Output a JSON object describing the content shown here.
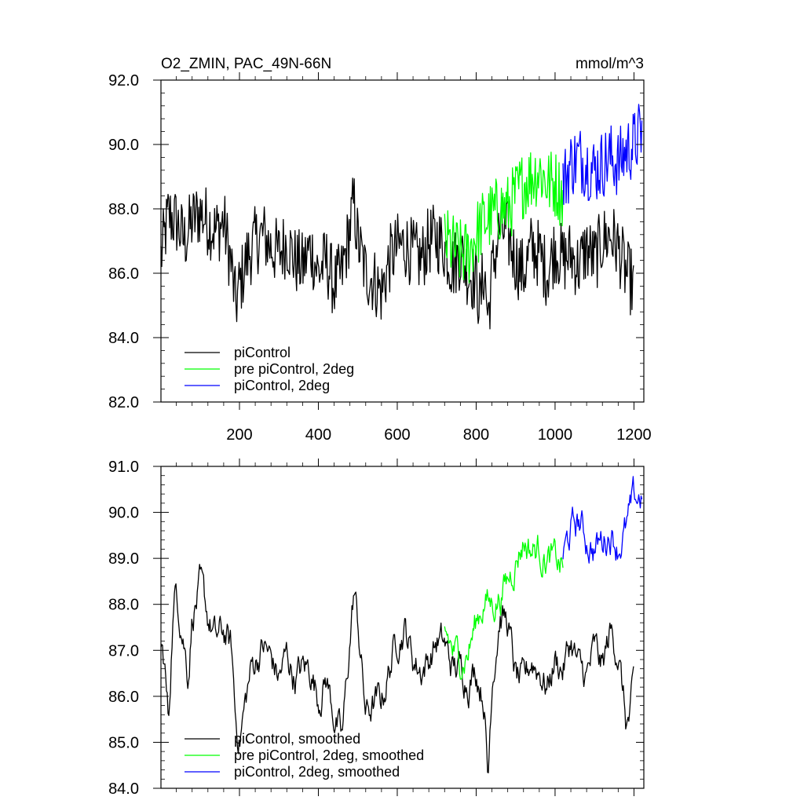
{
  "chart_data": [
    {
      "type": "line",
      "title": "O2_ZMIN, PAC_49N-66N",
      "units_label": "mmol/m^3",
      "xlim": [
        1,
        1225
      ],
      "ylim": [
        82.0,
        92.0
      ],
      "x_ticks": [
        200,
        400,
        600,
        800,
        1000,
        1200
      ],
      "x_tick_labels": [
        "200",
        "400",
        "600",
        "800",
        "1000",
        "1200"
      ],
      "y_ticks": [
        82,
        84,
        86,
        88,
        90,
        92
      ],
      "y_tick_labels": [
        "82.0",
        "84.0",
        "86.0",
        "88.0",
        "90.0",
        "92.0"
      ],
      "legend": [
        "piControl",
        "pre piControl, 2deg",
        "piControl, 2deg"
      ],
      "series": [
        {
          "name": "piControl",
          "color": "#000000",
          "x_start": 1,
          "x_end": 1200,
          "anchors": [
            [
              1,
              86.5
            ],
            [
              20,
              87.8
            ],
            [
              40,
              87.6
            ],
            [
              60,
              87.0
            ],
            [
              80,
              87.6
            ],
            [
              100,
              87.9
            ],
            [
              120,
              87.6
            ],
            [
              140,
              87.3
            ],
            [
              160,
              87.6
            ],
            [
              180,
              86.2
            ],
            [
              190,
              85.0
            ],
            [
              200,
              85.6
            ],
            [
              220,
              86.5
            ],
            [
              240,
              87.0
            ],
            [
              260,
              87.2
            ],
            [
              280,
              86.8
            ],
            [
              300,
              86.6
            ],
            [
              320,
              87.0
            ],
            [
              340,
              86.4
            ],
            [
              360,
              86.2
            ],
            [
              380,
              86.8
            ],
            [
              400,
              86.0
            ],
            [
              420,
              86.4
            ],
            [
              440,
              85.6
            ],
            [
              460,
              86.0
            ],
            [
              480,
              87.4
            ],
            [
              490,
              88.2
            ],
            [
              500,
              87.0
            ],
            [
              520,
              86.0
            ],
            [
              540,
              85.8
            ],
            [
              560,
              85.4
            ],
            [
              580,
              86.4
            ],
            [
              600,
              86.8
            ],
            [
              620,
              86.9
            ],
            [
              640,
              86.6
            ],
            [
              660,
              86.4
            ],
            [
              680,
              87.0
            ],
            [
              700,
              87.1
            ],
            [
              720,
              86.8
            ],
            [
              740,
              86.2
            ],
            [
              760,
              86.6
            ],
            [
              780,
              86.0
            ],
            [
              800,
              85.8
            ],
            [
              810,
              85.0
            ],
            [
              820,
              86.2
            ],
            [
              830,
              84.6
            ],
            [
              840,
              86.0
            ],
            [
              860,
              87.4
            ],
            [
              880,
              87.2
            ],
            [
              900,
              86.4
            ],
            [
              920,
              86.0
            ],
            [
              940,
              86.8
            ],
            [
              960,
              86.6
            ],
            [
              980,
              86.0
            ],
            [
              1000,
              86.8
            ],
            [
              1020,
              86.4
            ],
            [
              1040,
              86.6
            ],
            [
              1060,
              86.2
            ],
            [
              1080,
              86.8
            ],
            [
              1100,
              86.4
            ],
            [
              1120,
              87.0
            ],
            [
              1140,
              87.2
            ],
            [
              1160,
              86.8
            ],
            [
              1180,
              86.0
            ],
            [
              1200,
              85.6
            ]
          ]
        },
        {
          "name": "pre piControl, 2deg",
          "color": "#00ff00",
          "x_start": 720,
          "x_end": 1020,
          "anchors": [
            [
              720,
              87.0
            ],
            [
              740,
              86.8
            ],
            [
              760,
              86.6
            ],
            [
              780,
              86.6
            ],
            [
              800,
              87.2
            ],
            [
              820,
              87.6
            ],
            [
              840,
              87.8
            ],
            [
              860,
              88.0
            ],
            [
              880,
              88.0
            ],
            [
              900,
              88.4
            ],
            [
              920,
              88.8
            ],
            [
              940,
              89.0
            ],
            [
              960,
              89.2
            ],
            [
              980,
              88.8
            ],
            [
              1000,
              88.8
            ],
            [
              1020,
              88.4
            ]
          ]
        },
        {
          "name": "piControl, 2deg",
          "color": "#0000ff",
          "x_start": 1020,
          "x_end": 1220,
          "anchors": [
            [
              1020,
              88.8
            ],
            [
              1040,
              89.4
            ],
            [
              1060,
              89.6
            ],
            [
              1080,
              89.4
            ],
            [
              1100,
              89.2
            ],
            [
              1120,
              89.4
            ],
            [
              1140,
              89.6
            ],
            [
              1160,
              89.4
            ],
            [
              1180,
              89.8
            ],
            [
              1200,
              90.0
            ],
            [
              1220,
              90.4
            ]
          ]
        }
      ]
    },
    {
      "type": "line",
      "title": "",
      "xlim": [
        1,
        1225
      ],
      "ylim": [
        84.0,
        91.0
      ],
      "y_ticks": [
        84,
        85,
        86,
        87,
        88,
        89,
        90,
        91
      ],
      "y_tick_labels": [
        "84.0",
        "85.0",
        "86.0",
        "87.0",
        "88.0",
        "89.0",
        "90.0",
        "91.0"
      ],
      "legend": [
        "piControl, smoothed",
        "pre piControl, 2deg, smoothed",
        "piControl, 2deg, smoothed"
      ],
      "series": [
        {
          "name": "piControl, smoothed",
          "color": "#000000",
          "x_start": 1,
          "x_end": 1200,
          "anchors": [
            [
              1,
              87.1
            ],
            [
              10,
              86.7
            ],
            [
              20,
              85.4
            ],
            [
              30,
              87.6
            ],
            [
              40,
              88.4
            ],
            [
              60,
              87.2
            ],
            [
              70,
              86.5
            ],
            [
              80,
              87.8
            ],
            [
              100,
              88.3
            ],
            [
              120,
              87.7
            ],
            [
              140,
              87.2
            ],
            [
              160,
              87.4
            ],
            [
              180,
              87.0
            ],
            [
              190,
              85.5
            ],
            [
              200,
              85.1
            ],
            [
              210,
              85.6
            ],
            [
              230,
              86.6
            ],
            [
              260,
              87.1
            ],
            [
              280,
              86.8
            ],
            [
              300,
              86.4
            ],
            [
              320,
              86.9
            ],
            [
              340,
              86.4
            ],
            [
              360,
              86.6
            ],
            [
              380,
              86.6
            ],
            [
              400,
              86.0
            ],
            [
              420,
              86.4
            ],
            [
              440,
              85.6
            ],
            [
              460,
              85.0
            ],
            [
              480,
              87.2
            ],
            [
              490,
              88.3
            ],
            [
              500,
              87.6
            ],
            [
              520,
              85.6
            ],
            [
              540,
              85.8
            ],
            [
              560,
              85.9
            ],
            [
              580,
              86.6
            ],
            [
              600,
              87.3
            ],
            [
              620,
              87.5
            ],
            [
              640,
              86.8
            ],
            [
              660,
              86.6
            ],
            [
              680,
              86.8
            ],
            [
              700,
              87.2
            ],
            [
              720,
              87.1
            ],
            [
              740,
              86.6
            ],
            [
              760,
              86.6
            ],
            [
              780,
              86.4
            ],
            [
              800,
              86.6
            ],
            [
              820,
              86.0
            ],
            [
              830,
              84.1
            ],
            [
              840,
              86.4
            ],
            [
              860,
              87.8
            ],
            [
              880,
              87.6
            ],
            [
              900,
              86.4
            ],
            [
              920,
              86.2
            ],
            [
              940,
              86.8
            ],
            [
              960,
              86.6
            ],
            [
              980,
              86.2
            ],
            [
              1000,
              86.8
            ],
            [
              1020,
              86.6
            ],
            [
              1040,
              87.2
            ],
            [
              1060,
              86.6
            ],
            [
              1080,
              86.4
            ],
            [
              1100,
              87.0
            ],
            [
              1120,
              86.6
            ],
            [
              1140,
              87.4
            ],
            [
              1160,
              87.0
            ],
            [
              1180,
              85.4
            ],
            [
              1190,
              85.5
            ],
            [
              1200,
              86.2
            ]
          ]
        },
        {
          "name": "pre piControl, 2deg, smoothed",
          "color": "#00ff00",
          "x_start": 720,
          "x_end": 1020,
          "anchors": [
            [
              720,
              87.5
            ],
            [
              740,
              87.0
            ],
            [
              760,
              86.8
            ],
            [
              780,
              87.0
            ],
            [
              800,
              87.6
            ],
            [
              820,
              88.1
            ],
            [
              840,
              88.0
            ],
            [
              860,
              88.2
            ],
            [
              880,
              88.5
            ],
            [
              900,
              89.0
            ],
            [
              920,
              89.4
            ],
            [
              940,
              89.2
            ],
            [
              960,
              89.2
            ],
            [
              980,
              89.0
            ],
            [
              1000,
              88.9
            ],
            [
              1020,
              88.8
            ]
          ]
        },
        {
          "name": "piControl, 2deg, smoothed",
          "color": "#0000ff",
          "x_start": 1020,
          "x_end": 1220,
          "anchors": [
            [
              1020,
              89.0
            ],
            [
              1040,
              89.6
            ],
            [
              1060,
              89.8
            ],
            [
              1080,
              89.4
            ],
            [
              1100,
              89.2
            ],
            [
              1120,
              89.4
            ],
            [
              1140,
              89.6
            ],
            [
              1160,
              89.3
            ],
            [
              1180,
              89.6
            ],
            [
              1200,
              90.2
            ],
            [
              1220,
              90.4
            ]
          ]
        }
      ]
    }
  ]
}
